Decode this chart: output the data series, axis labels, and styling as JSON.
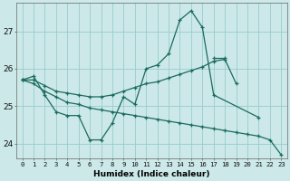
{
  "xlabel": "Humidex (Indice chaleur)",
  "bg_color": "#cce8e8",
  "line_color": "#1a6b5e",
  "grid_color": "#99cccc",
  "xlim": [
    -0.5,
    23.5
  ],
  "ylim": [
    23.6,
    27.75
  ],
  "yticks": [
    24,
    25,
    26,
    27
  ],
  "xticks": [
    0,
    1,
    2,
    3,
    4,
    5,
    6,
    7,
    8,
    9,
    10,
    11,
    12,
    13,
    14,
    15,
    16,
    17,
    18,
    19,
    20,
    21,
    22,
    23
  ],
  "series": [
    {
      "x": [
        0,
        1,
        2,
        3,
        4,
        5,
        6,
        7,
        8,
        9,
        10,
        11,
        12,
        13,
        14,
        15,
        16,
        17,
        21
      ],
      "y": [
        25.7,
        25.8,
        25.3,
        24.85,
        24.75,
        24.75,
        24.1,
        24.1,
        24.55,
        25.25,
        25.05,
        26.0,
        26.1,
        26.4,
        27.3,
        27.55,
        27.1,
        25.3,
        24.7
      ]
    },
    {
      "x": [
        0,
        1,
        2,
        3,
        4,
        5,
        6,
        7,
        8,
        9,
        10,
        11,
        12,
        13,
        14,
        15,
        16,
        17,
        18,
        19
      ],
      "y": [
        25.7,
        25.7,
        25.55,
        25.4,
        25.35,
        25.3,
        25.25,
        25.25,
        25.3,
        25.4,
        25.5,
        25.6,
        25.65,
        25.75,
        25.85,
        25.95,
        26.05,
        26.2,
        26.25,
        25.6
      ]
    },
    {
      "x": [
        0,
        1,
        2,
        3,
        4,
        5,
        6,
        7,
        8,
        9,
        10,
        11,
        12,
        13,
        14,
        15,
        16,
        17,
        18,
        19,
        20,
        21,
        22,
        23
      ],
      "y": [
        25.7,
        25.6,
        25.4,
        25.25,
        25.1,
        25.05,
        24.95,
        24.9,
        24.85,
        24.8,
        24.75,
        24.7,
        24.65,
        24.6,
        24.55,
        24.5,
        24.45,
        24.4,
        24.35,
        24.3,
        24.25,
        24.2,
        24.1,
        23.7
      ]
    },
    {
      "x": [
        17,
        18
      ],
      "y": [
        26.3,
        26.3
      ]
    }
  ]
}
